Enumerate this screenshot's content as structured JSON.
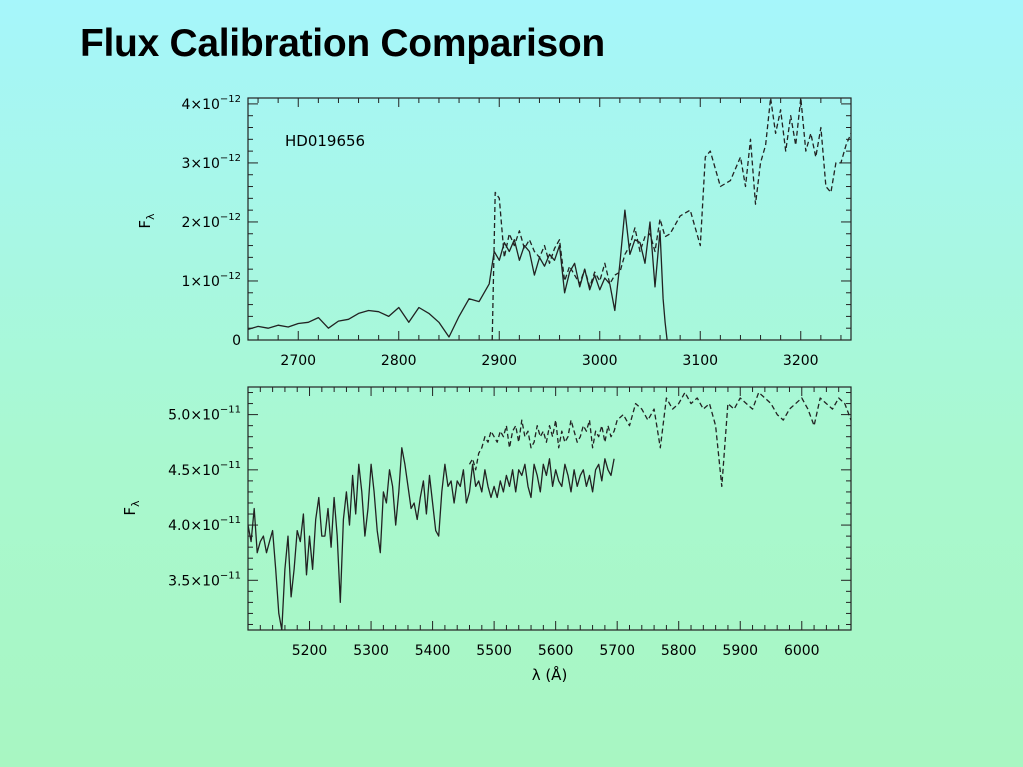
{
  "slide": {
    "title": "Flux Calibration Comparison"
  },
  "colors": {
    "background_top": "#a6f6fb",
    "background_bottom": "#a8f6c2",
    "line": "#222222"
  },
  "chart_data": [
    {
      "type": "line",
      "annotation": "HD019656",
      "ylabel": "F",
      "ylabel_subscript": "λ",
      "xlabel": "",
      "xlim": [
        2650,
        3250
      ],
      "ylim": [
        0,
        4.1e-12
      ],
      "x_ticks": [
        2700,
        2800,
        2900,
        3000,
        3100,
        3200
      ],
      "y_ticks": [
        {
          "value": 0,
          "mantissa": "0",
          "exponent": ""
        },
        {
          "value": 1e-12,
          "mantissa": "1×10",
          "exponent": "−12"
        },
        {
          "value": 2e-12,
          "mantissa": "2×10",
          "exponent": "−12"
        },
        {
          "value": 3e-12,
          "mantissa": "3×10",
          "exponent": "−12"
        },
        {
          "value": 4e-12,
          "mantissa": "4×10",
          "exponent": "−12"
        }
      ],
      "grid": false,
      "series": [
        {
          "style": "solid",
          "x": [
            2650,
            2660,
            2670,
            2680,
            2690,
            2700,
            2710,
            2720,
            2730,
            2740,
            2750,
            2760,
            2770,
            2780,
            2790,
            2800,
            2810,
            2820,
            2830,
            2840,
            2850,
            2860,
            2870,
            2880,
            2890,
            2895,
            2900,
            2905,
            2910,
            2915,
            2920,
            2925,
            2930,
            2935,
            2940,
            2945,
            2950,
            2955,
            2960,
            2965,
            2970,
            2975,
            2980,
            2985,
            2990,
            2995,
            3000,
            3005,
            3010,
            3015,
            3020,
            3025,
            3030,
            3035,
            3040,
            3045,
            3050,
            3055,
            3060,
            3063,
            3065,
            3067
          ],
          "y": [
            0.18,
            0.23,
            0.2,
            0.25,
            0.22,
            0.28,
            0.3,
            0.38,
            0.2,
            0.32,
            0.35,
            0.45,
            0.5,
            0.48,
            0.4,
            0.55,
            0.3,
            0.55,
            0.45,
            0.3,
            0.05,
            0.4,
            0.7,
            0.65,
            0.95,
            1.5,
            1.35,
            1.65,
            1.5,
            1.7,
            1.35,
            1.6,
            1.5,
            1.1,
            1.4,
            1.25,
            1.45,
            1.35,
            1.6,
            0.8,
            1.15,
            1.3,
            0.9,
            1.2,
            0.85,
            1.1,
            0.85,
            1.05,
            0.95,
            0.5,
            1.3,
            2.2,
            1.45,
            1.7,
            1.65,
            1.3,
            2.0,
            0.9,
            1.85,
            0.7,
            0.3,
            0
          ]
        },
        {
          "style": "dashed",
          "x": [
            2893,
            2896,
            2900,
            2905,
            2910,
            2915,
            2920,
            2925,
            2930,
            2935,
            2940,
            2945,
            2950,
            2955,
            2960,
            2965,
            2970,
            2975,
            2980,
            2985,
            2990,
            2995,
            3000,
            3005,
            3010,
            3015,
            3020,
            3025,
            3030,
            3035,
            3040,
            3045,
            3050,
            3055,
            3060,
            3065,
            3070,
            3080,
            3090,
            3100,
            3105,
            3110,
            3120,
            3130,
            3140,
            3145,
            3150,
            3155,
            3160,
            3165,
            3170,
            3175,
            3180,
            3185,
            3190,
            3195,
            3200,
            3205,
            3210,
            3215,
            3220,
            3225,
            3230,
            3235,
            3240,
            3245,
            3250
          ],
          "y": [
            0,
            2.5,
            2.4,
            1.4,
            1.8,
            1.6,
            1.85,
            1.55,
            1.7,
            1.5,
            1.4,
            1.6,
            1.3,
            1.55,
            1.7,
            1.0,
            1.25,
            1.1,
            0.95,
            1.2,
            0.9,
            1.15,
            1.0,
            1.3,
            0.95,
            1.1,
            1.15,
            1.45,
            1.6,
            1.9,
            1.5,
            1.75,
            1.8,
            1.5,
            2.05,
            1.75,
            1.8,
            2.1,
            2.2,
            1.6,
            3.1,
            3.2,
            2.6,
            2.7,
            3.1,
            2.6,
            3.4,
            2.3,
            3.0,
            3.3,
            4.1,
            3.5,
            3.9,
            3.2,
            3.8,
            3.3,
            4.1,
            3.2,
            3.5,
            3.1,
            3.6,
            2.6,
            2.5,
            3.0,
            3.0,
            3.3,
            3.5
          ]
        }
      ]
    },
    {
      "type": "line",
      "annotation": "",
      "ylabel": "F",
      "ylabel_subscript": "λ",
      "xlabel": "λ (Å)",
      "xlim": [
        5100,
        6080
      ],
      "ylim": [
        3.05e-11,
        5.25e-11
      ],
      "x_ticks": [
        5200,
        5300,
        5400,
        5500,
        5600,
        5700,
        5800,
        5900,
        6000
      ],
      "y_ticks": [
        {
          "value": 3.5e-11,
          "mantissa": "3.5×10",
          "exponent": "−11"
        },
        {
          "value": 4e-11,
          "mantissa": "4.0×10",
          "exponent": "−11"
        },
        {
          "value": 4.5e-11,
          "mantissa": "4.5×10",
          "exponent": "−11"
        },
        {
          "value": 5e-11,
          "mantissa": "5.0×10",
          "exponent": "−11"
        }
      ],
      "grid": false,
      "series": [
        {
          "style": "solid",
          "x": [
            5100,
            5105,
            5110,
            5115,
            5120,
            5125,
            5130,
            5135,
            5140,
            5145,
            5150,
            5155,
            5160,
            5165,
            5170,
            5175,
            5180,
            5185,
            5190,
            5195,
            5200,
            5205,
            5210,
            5215,
            5220,
            5225,
            5230,
            5235,
            5240,
            5245,
            5250,
            5255,
            5260,
            5265,
            5270,
            5275,
            5280,
            5285,
            5290,
            5295,
            5300,
            5305,
            5310,
            5315,
            5320,
            5325,
            5330,
            5335,
            5340,
            5345,
            5350,
            5355,
            5360,
            5365,
            5370,
            5375,
            5380,
            5385,
            5390,
            5395,
            5400,
            5405,
            5410,
            5415,
            5420,
            5425,
            5430,
            5435,
            5440,
            5445,
            5450,
            5455,
            5460,
            5465,
            5470,
            5475,
            5480,
            5485,
            5490,
            5495,
            5500,
            5505,
            5510,
            5515,
            5520,
            5525,
            5530,
            5535,
            5540,
            5545,
            5550,
            5555,
            5560,
            5565,
            5570,
            5575,
            5580,
            5585,
            5590,
            5595,
            5600,
            5605,
            5610,
            5615,
            5620,
            5625,
            5630,
            5635,
            5640,
            5645,
            5650,
            5655,
            5660,
            5665,
            5670,
            5675,
            5680,
            5685,
            5690,
            5695
          ],
          "y": [
            4.0,
            3.85,
            4.15,
            3.75,
            3.85,
            3.9,
            3.75,
            3.85,
            3.95,
            3.6,
            3.2,
            3.05,
            3.6,
            3.9,
            3.35,
            3.6,
            3.95,
            3.85,
            4.1,
            3.55,
            3.9,
            3.6,
            4.05,
            4.25,
            3.9,
            3.9,
            4.15,
            3.8,
            4.25,
            3.9,
            3.3,
            4.05,
            4.3,
            4.0,
            4.45,
            4.1,
            4.55,
            4.3,
            3.9,
            4.15,
            4.55,
            4.3,
            3.95,
            3.75,
            4.3,
            4.2,
            4.5,
            4.35,
            4.0,
            4.3,
            4.7,
            4.55,
            4.35,
            4.15,
            4.2,
            4.05,
            4.25,
            4.4,
            4.1,
            4.45,
            4.2,
            3.95,
            3.9,
            4.3,
            4.55,
            4.35,
            4.4,
            4.2,
            4.4,
            4.35,
            4.5,
            4.2,
            4.3,
            4.55,
            4.35,
            4.4,
            4.3,
            4.5,
            4.35,
            4.25,
            4.35,
            4.25,
            4.4,
            4.3,
            4.45,
            4.35,
            4.5,
            4.3,
            4.5,
            4.45,
            4.55,
            4.35,
            4.25,
            4.55,
            4.45,
            4.3,
            4.55,
            4.45,
            4.6,
            4.35,
            4.5,
            4.4,
            4.35,
            4.55,
            4.45,
            4.3,
            4.5,
            4.35,
            4.45,
            4.5,
            4.35,
            4.45,
            4.3,
            4.5,
            4.55,
            4.4,
            4.6,
            4.5,
            4.45,
            4.6
          ]
        },
        {
          "style": "dashed",
          "x": [
            5460,
            5465,
            5470,
            5475,
            5480,
            5485,
            5490,
            5495,
            5500,
            5505,
            5510,
            5515,
            5520,
            5525,
            5530,
            5535,
            5540,
            5545,
            5550,
            5555,
            5560,
            5565,
            5570,
            5575,
            5580,
            5585,
            5590,
            5595,
            5600,
            5605,
            5610,
            5615,
            5620,
            5625,
            5630,
            5635,
            5640,
            5645,
            5650,
            5655,
            5660,
            5665,
            5670,
            5675,
            5680,
            5685,
            5690,
            5695,
            5700,
            5710,
            5720,
            5730,
            5740,
            5750,
            5760,
            5770,
            5780,
            5790,
            5800,
            5810,
            5820,
            5830,
            5840,
            5850,
            5860,
            5870,
            5880,
            5890,
            5900,
            5910,
            5920,
            5930,
            5940,
            5950,
            5960,
            5970,
            5980,
            5990,
            6000,
            6010,
            6020,
            6030,
            6040,
            6050,
            6060,
            6070,
            6080
          ],
          "y": [
            4.55,
            4.6,
            4.5,
            4.65,
            4.7,
            4.8,
            4.75,
            4.85,
            4.8,
            4.75,
            4.85,
            4.8,
            4.9,
            4.7,
            4.85,
            4.9,
            4.75,
            4.95,
            4.8,
            4.85,
            4.7,
            4.75,
            4.9,
            4.8,
            4.85,
            4.75,
            4.9,
            4.8,
            4.95,
            4.7,
            4.85,
            4.75,
            4.8,
            4.95,
            4.85,
            4.75,
            4.8,
            4.9,
            4.85,
            4.95,
            4.7,
            4.85,
            4.8,
            4.9,
            4.75,
            4.9,
            4.8,
            4.85,
            4.95,
            5.0,
            4.9,
            5.1,
            5.05,
            4.95,
            5.05,
            4.7,
            5.15,
            5.05,
            5.1,
            5.2,
            5.1,
            5.15,
            5.05,
            5.1,
            4.9,
            4.35,
            5.1,
            5.05,
            5.15,
            5.1,
            5.05,
            5.2,
            5.15,
            5.1,
            5.0,
            4.95,
            5.05,
            5.1,
            5.15,
            5.05,
            4.9,
            5.15,
            5.1,
            5.05,
            5.15,
            5.1,
            4.95
          ]
        }
      ]
    }
  ]
}
